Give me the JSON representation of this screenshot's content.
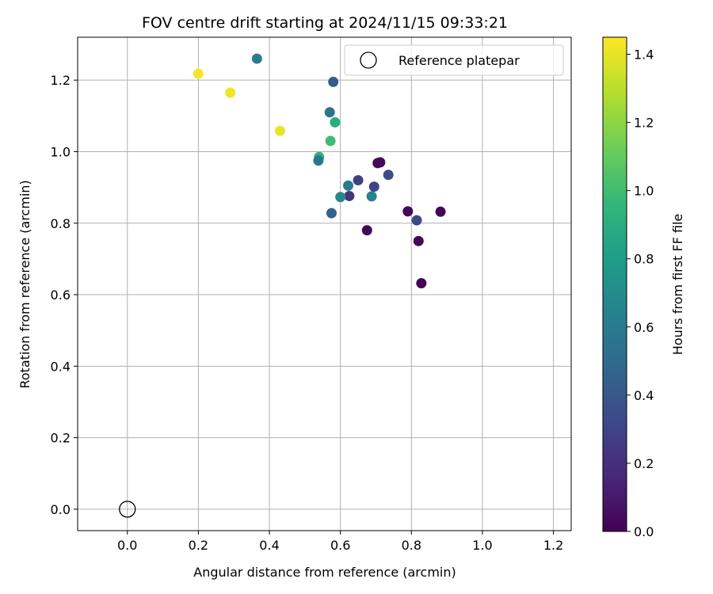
{
  "chart_data": {
    "type": "scatter",
    "title": "FOV centre drift starting at 2024/11/15 09:33:21",
    "xlabel": "Angular distance from reference (arcmin)",
    "ylabel": "Rotation from reference (arcmin)",
    "xlim": [
      -0.14,
      1.25
    ],
    "ylim": [
      -0.06,
      1.32
    ],
    "xticks": [
      0.0,
      0.2,
      0.4,
      0.6,
      0.8,
      1.0,
      1.2
    ],
    "xtick_labels": [
      "0.0",
      "0.2",
      "0.4",
      "0.6",
      "0.8",
      "1.0",
      "1.2"
    ],
    "yticks": [
      0.0,
      0.2,
      0.4,
      0.6,
      0.8,
      1.0,
      1.2
    ],
    "ytick_labels": [
      "0.0",
      "0.2",
      "0.4",
      "0.6",
      "0.8",
      "1.0",
      "1.2"
    ],
    "grid": true,
    "legend": {
      "placement": "top-right",
      "entries": [
        "Reference platepar"
      ]
    },
    "reference_point": {
      "name": "Reference platepar",
      "x": 0.0,
      "y": 0.0
    },
    "colorbar": {
      "label": "Hours from first FF file",
      "range": [
        0.0,
        1.45
      ],
      "ticks": [
        0.0,
        0.2,
        0.4,
        0.6,
        0.8,
        1.0,
        1.2,
        1.4
      ],
      "tick_labels": [
        "0.0",
        "0.2",
        "0.4",
        "0.6",
        "0.8",
        "1.0",
        "1.2",
        "1.4"
      ],
      "colormap": "viridis",
      "colormap_stops": [
        "#440154",
        "#482878",
        "#3e4989",
        "#31688e",
        "#26828e",
        "#1f9e89",
        "#35b779",
        "#6ece58",
        "#b5de2b",
        "#fde725"
      ]
    },
    "points": [
      {
        "x": 0.2,
        "y": 1.218,
        "hours": 1.43
      },
      {
        "x": 0.29,
        "y": 1.165,
        "hours": 1.42
      },
      {
        "x": 0.43,
        "y": 1.058,
        "hours": 1.4
      },
      {
        "x": 0.365,
        "y": 1.26,
        "hours": 0.6
      },
      {
        "x": 0.58,
        "y": 1.195,
        "hours": 0.42
      },
      {
        "x": 0.57,
        "y": 1.11,
        "hours": 0.55
      },
      {
        "x": 0.585,
        "y": 1.082,
        "hours": 0.9
      },
      {
        "x": 0.572,
        "y": 1.03,
        "hours": 1.0
      },
      {
        "x": 0.54,
        "y": 0.985,
        "hours": 0.92
      },
      {
        "x": 0.538,
        "y": 0.975,
        "hours": 0.58
      },
      {
        "x": 0.705,
        "y": 0.968,
        "hours": 0.03
      },
      {
        "x": 0.712,
        "y": 0.97,
        "hours": 0.03
      },
      {
        "x": 0.735,
        "y": 0.935,
        "hours": 0.35
      },
      {
        "x": 0.65,
        "y": 0.92,
        "hours": 0.28
      },
      {
        "x": 0.622,
        "y": 0.905,
        "hours": 0.6
      },
      {
        "x": 0.695,
        "y": 0.902,
        "hours": 0.3
      },
      {
        "x": 0.625,
        "y": 0.876,
        "hours": 0.22
      },
      {
        "x": 0.6,
        "y": 0.873,
        "hours": 0.68
      },
      {
        "x": 0.688,
        "y": 0.875,
        "hours": 0.65
      },
      {
        "x": 0.575,
        "y": 0.828,
        "hours": 0.45
      },
      {
        "x": 0.79,
        "y": 0.833,
        "hours": 0.02
      },
      {
        "x": 0.882,
        "y": 0.832,
        "hours": 0.02
      },
      {
        "x": 0.815,
        "y": 0.808,
        "hours": 0.33
      },
      {
        "x": 0.675,
        "y": 0.78,
        "hours": 0.02
      },
      {
        "x": 0.82,
        "y": 0.75,
        "hours": 0.02
      },
      {
        "x": 0.828,
        "y": 0.632,
        "hours": 0.01
      }
    ]
  }
}
